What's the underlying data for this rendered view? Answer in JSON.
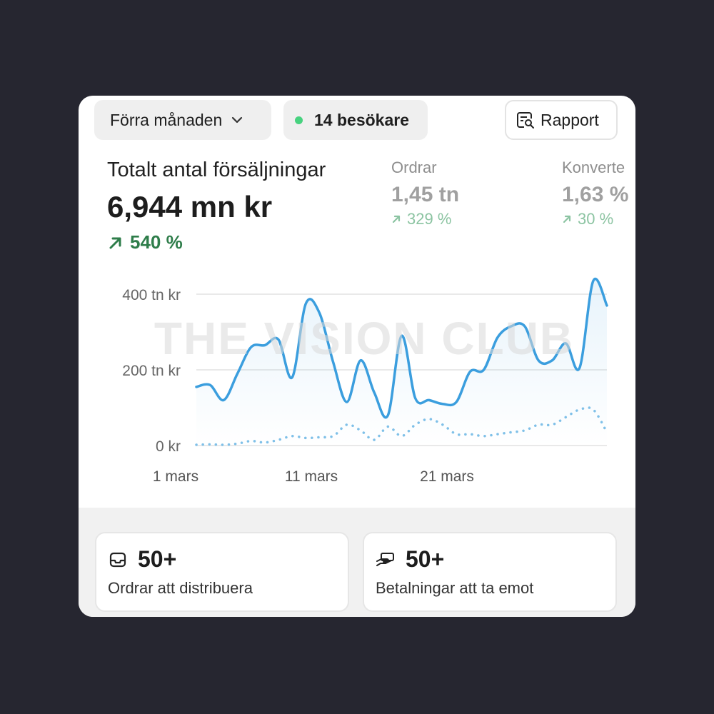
{
  "header": {
    "period_label": "Förra månaden",
    "visitors_label": "14 besökare",
    "report_label": "Rapport"
  },
  "summary": {
    "title": "Totalt antal försäljningar",
    "value": "6,944 mn kr",
    "change": "540 %"
  },
  "metrics": [
    {
      "label": "Ordrar",
      "value": "1,45 tn",
      "change": "329 %"
    },
    {
      "label": "Konverte",
      "value": "1,63 %",
      "change": "30 %"
    }
  ],
  "watermark": "THE VISION CLUB",
  "colors": {
    "accent": "#3b9ede",
    "positive": "#2e7d4a",
    "positive_muted": "#8cc4a2",
    "status_dot": "#47d27f"
  },
  "chart_data": {
    "type": "line",
    "y_ticks": [
      "400 tn kr",
      "200 tn kr",
      "0 kr"
    ],
    "y_tick_values": [
      400,
      200,
      0
    ],
    "x_ticks": [
      "1 mars",
      "11 mars",
      "21 mars"
    ],
    "x_tick_values": [
      1,
      11,
      21
    ],
    "xlim": [
      3,
      33
    ],
    "ylim": [
      0,
      400
    ],
    "grid": true,
    "series": [
      {
        "style": "solid",
        "x": [
          3,
          4,
          5,
          6,
          7,
          8,
          9,
          10,
          11,
          12,
          13,
          14,
          15,
          16,
          17,
          18,
          19,
          20,
          21,
          22,
          23,
          24,
          25,
          26,
          27,
          28,
          29,
          30,
          31,
          32,
          33
        ],
        "values": [
          155,
          160,
          120,
          190,
          260,
          265,
          280,
          180,
          375,
          350,
          220,
          115,
          225,
          140,
          80,
          290,
          125,
          120,
          110,
          115,
          195,
          200,
          285,
          315,
          315,
          225,
          225,
          270,
          205,
          435,
          370
        ]
      },
      {
        "style": "dotted",
        "x": [
          3,
          4,
          5,
          6,
          7,
          8,
          9,
          10,
          11,
          12,
          13,
          14,
          15,
          16,
          17,
          18,
          19,
          20,
          21,
          22,
          23,
          24,
          25,
          26,
          27,
          28,
          29,
          30,
          31,
          32,
          33
        ],
        "values": [
          2,
          3,
          2,
          5,
          12,
          8,
          15,
          25,
          20,
          22,
          25,
          55,
          40,
          15,
          50,
          25,
          55,
          70,
          55,
          30,
          30,
          25,
          30,
          35,
          40,
          55,
          55,
          75,
          95,
          95,
          35
        ]
      }
    ]
  },
  "tiles": [
    {
      "icon": "inbox-icon",
      "value": "50+",
      "label": "Ordrar att distribuera"
    },
    {
      "icon": "payment-hand-icon",
      "value": "50+",
      "label": "Betalningar att ta emot"
    }
  ]
}
